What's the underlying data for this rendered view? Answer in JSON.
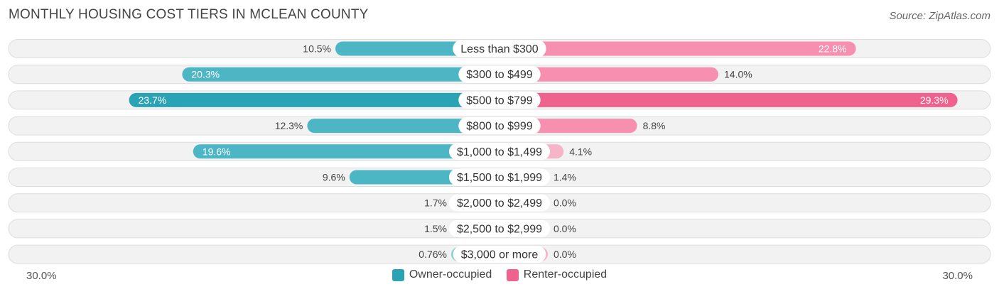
{
  "chart_data": {
    "type": "bar",
    "orientation": "horizontal-diverging",
    "title": "MONTHLY HOUSING COST TIERS IN MCLEAN COUNTY",
    "source": "Source: ZipAtlas.com",
    "categories": [
      "Less than $300",
      "$300 to $499",
      "$500 to $799",
      "$800 to $999",
      "$1,000 to $1,499",
      "$1,500 to $1,999",
      "$2,000 to $2,499",
      "$2,500 to $2,999",
      "$3,000 or more"
    ],
    "series": [
      {
        "name": "Owner-occupied",
        "values": [
          10.5,
          20.3,
          23.7,
          12.3,
          19.6,
          9.6,
          1.7,
          1.5,
          0.76
        ],
        "labels": [
          "10.5%",
          "20.3%",
          "23.7%",
          "12.3%",
          "19.6%",
          "9.6%",
          "1.7%",
          "1.5%",
          "0.76%"
        ]
      },
      {
        "name": "Renter-occupied",
        "values": [
          22.8,
          14.0,
          29.3,
          8.8,
          4.1,
          1.4,
          0.0,
          0.0,
          0.0
        ],
        "labels": [
          "22.8%",
          "14.0%",
          "29.3%",
          "8.8%",
          "4.1%",
          "1.4%",
          "0.0%",
          "0.0%",
          "0.0%"
        ]
      }
    ],
    "axis_min_label": "30.0%",
    "axis_max_label": "30.0%",
    "xlim": [
      -30,
      30
    ],
    "colors": {
      "owner": "#4db6c4",
      "owner_strong": "#2aa3b5",
      "owner_light": "#8dd1da",
      "renter": "#f68fb0",
      "renter_strong": "#f0628e",
      "renter_light": "#f7b3c8",
      "track": "#f2f2f2",
      "track_border": "#dddddd"
    },
    "legend_position": "bottom-center"
  }
}
